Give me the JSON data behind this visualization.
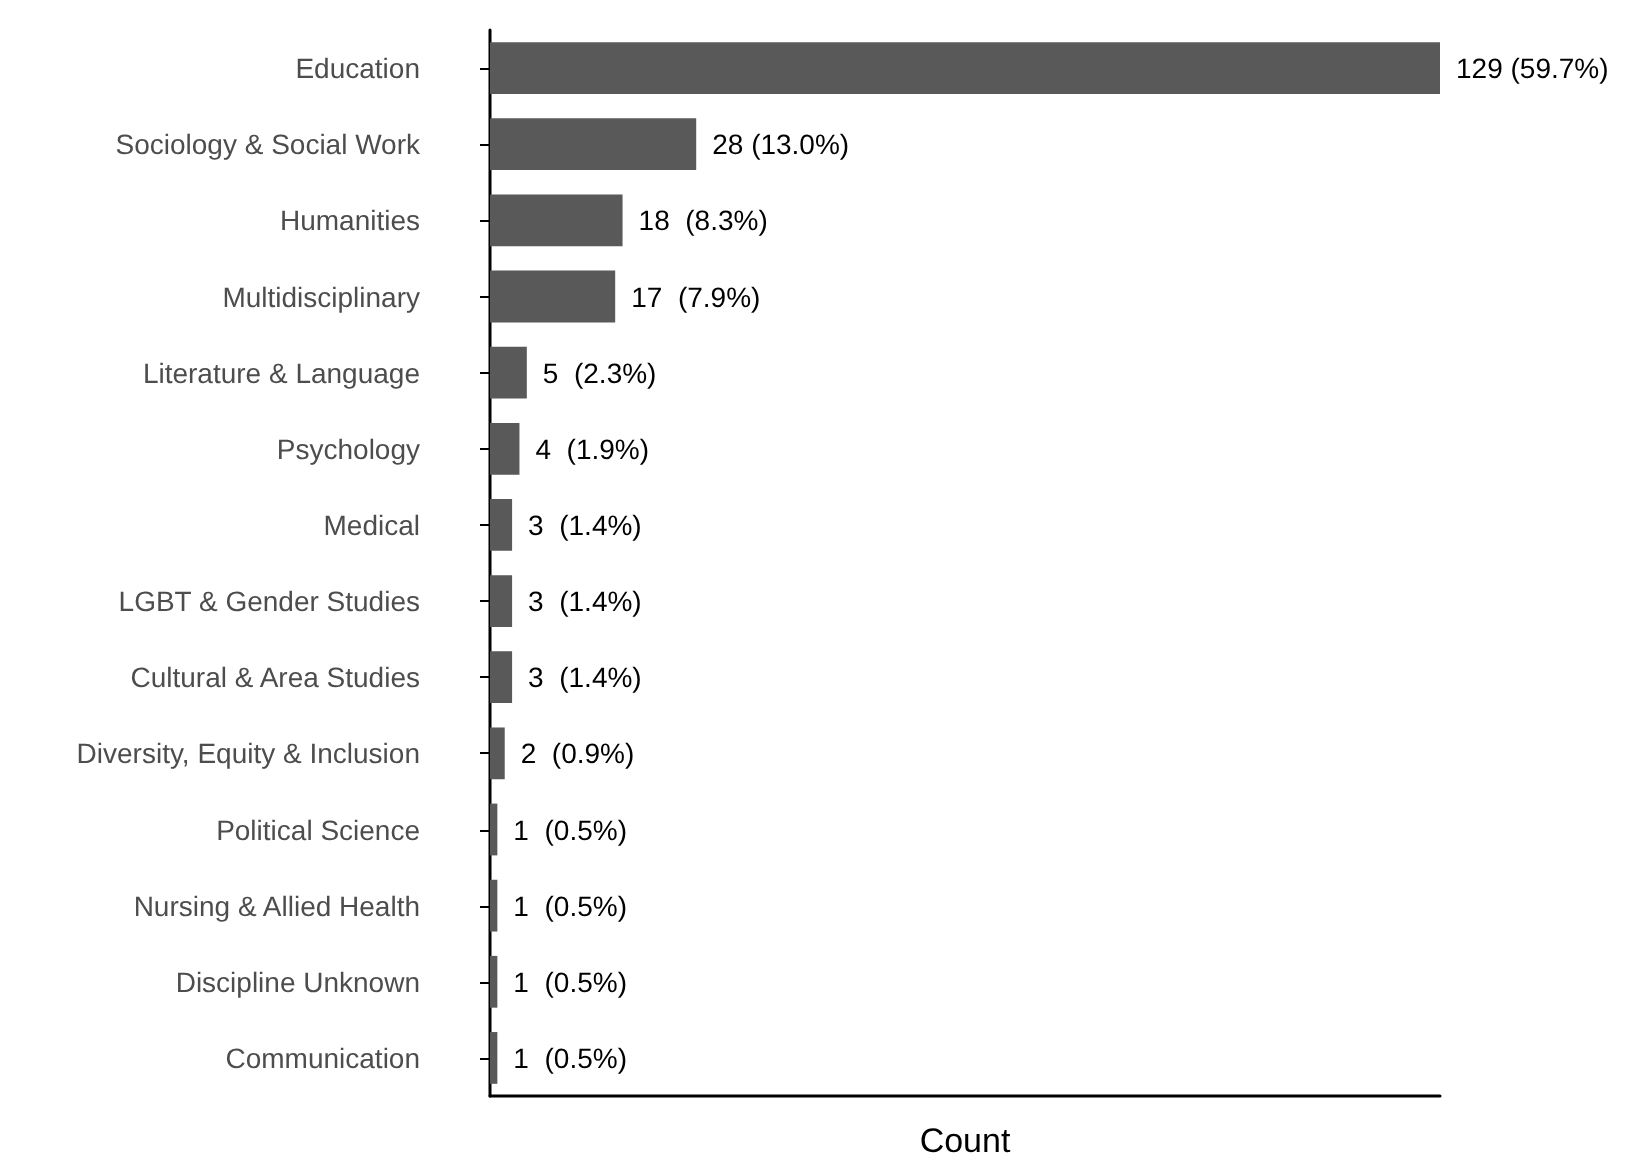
{
  "chart_data": {
    "type": "bar",
    "orientation": "horizontal",
    "xlabel": "Count",
    "categories": [
      "Education",
      "Sociology & Social Work",
      "Humanities",
      "Multidisciplinary",
      "Literature & Language",
      "Psychology",
      "Medical",
      "LGBT & Gender Studies",
      "Cultural & Area Studies",
      "Diversity, Equity & Inclusion",
      "Political Science",
      "Nursing & Allied Health",
      "Discipline Unknown",
      "Communication"
    ],
    "values": [
      129,
      28,
      18,
      17,
      5,
      4,
      3,
      3,
      3,
      2,
      1,
      1,
      1,
      1
    ],
    "value_labels": [
      "129 (59.7%)",
      "28 (13.0%)",
      "18  (8.3%)",
      "17  (7.9%)",
      "5  (2.3%)",
      "4  (1.9%)",
      "3  (1.4%)",
      "3  (1.4%)",
      "3  (1.4%)",
      "2  (0.9%)",
      "1  (0.5%)",
      "1  (0.5%)",
      "1  (0.5%)",
      "1  (0.5%)"
    ],
    "color": "#595959",
    "tick_labels": "y"
  }
}
